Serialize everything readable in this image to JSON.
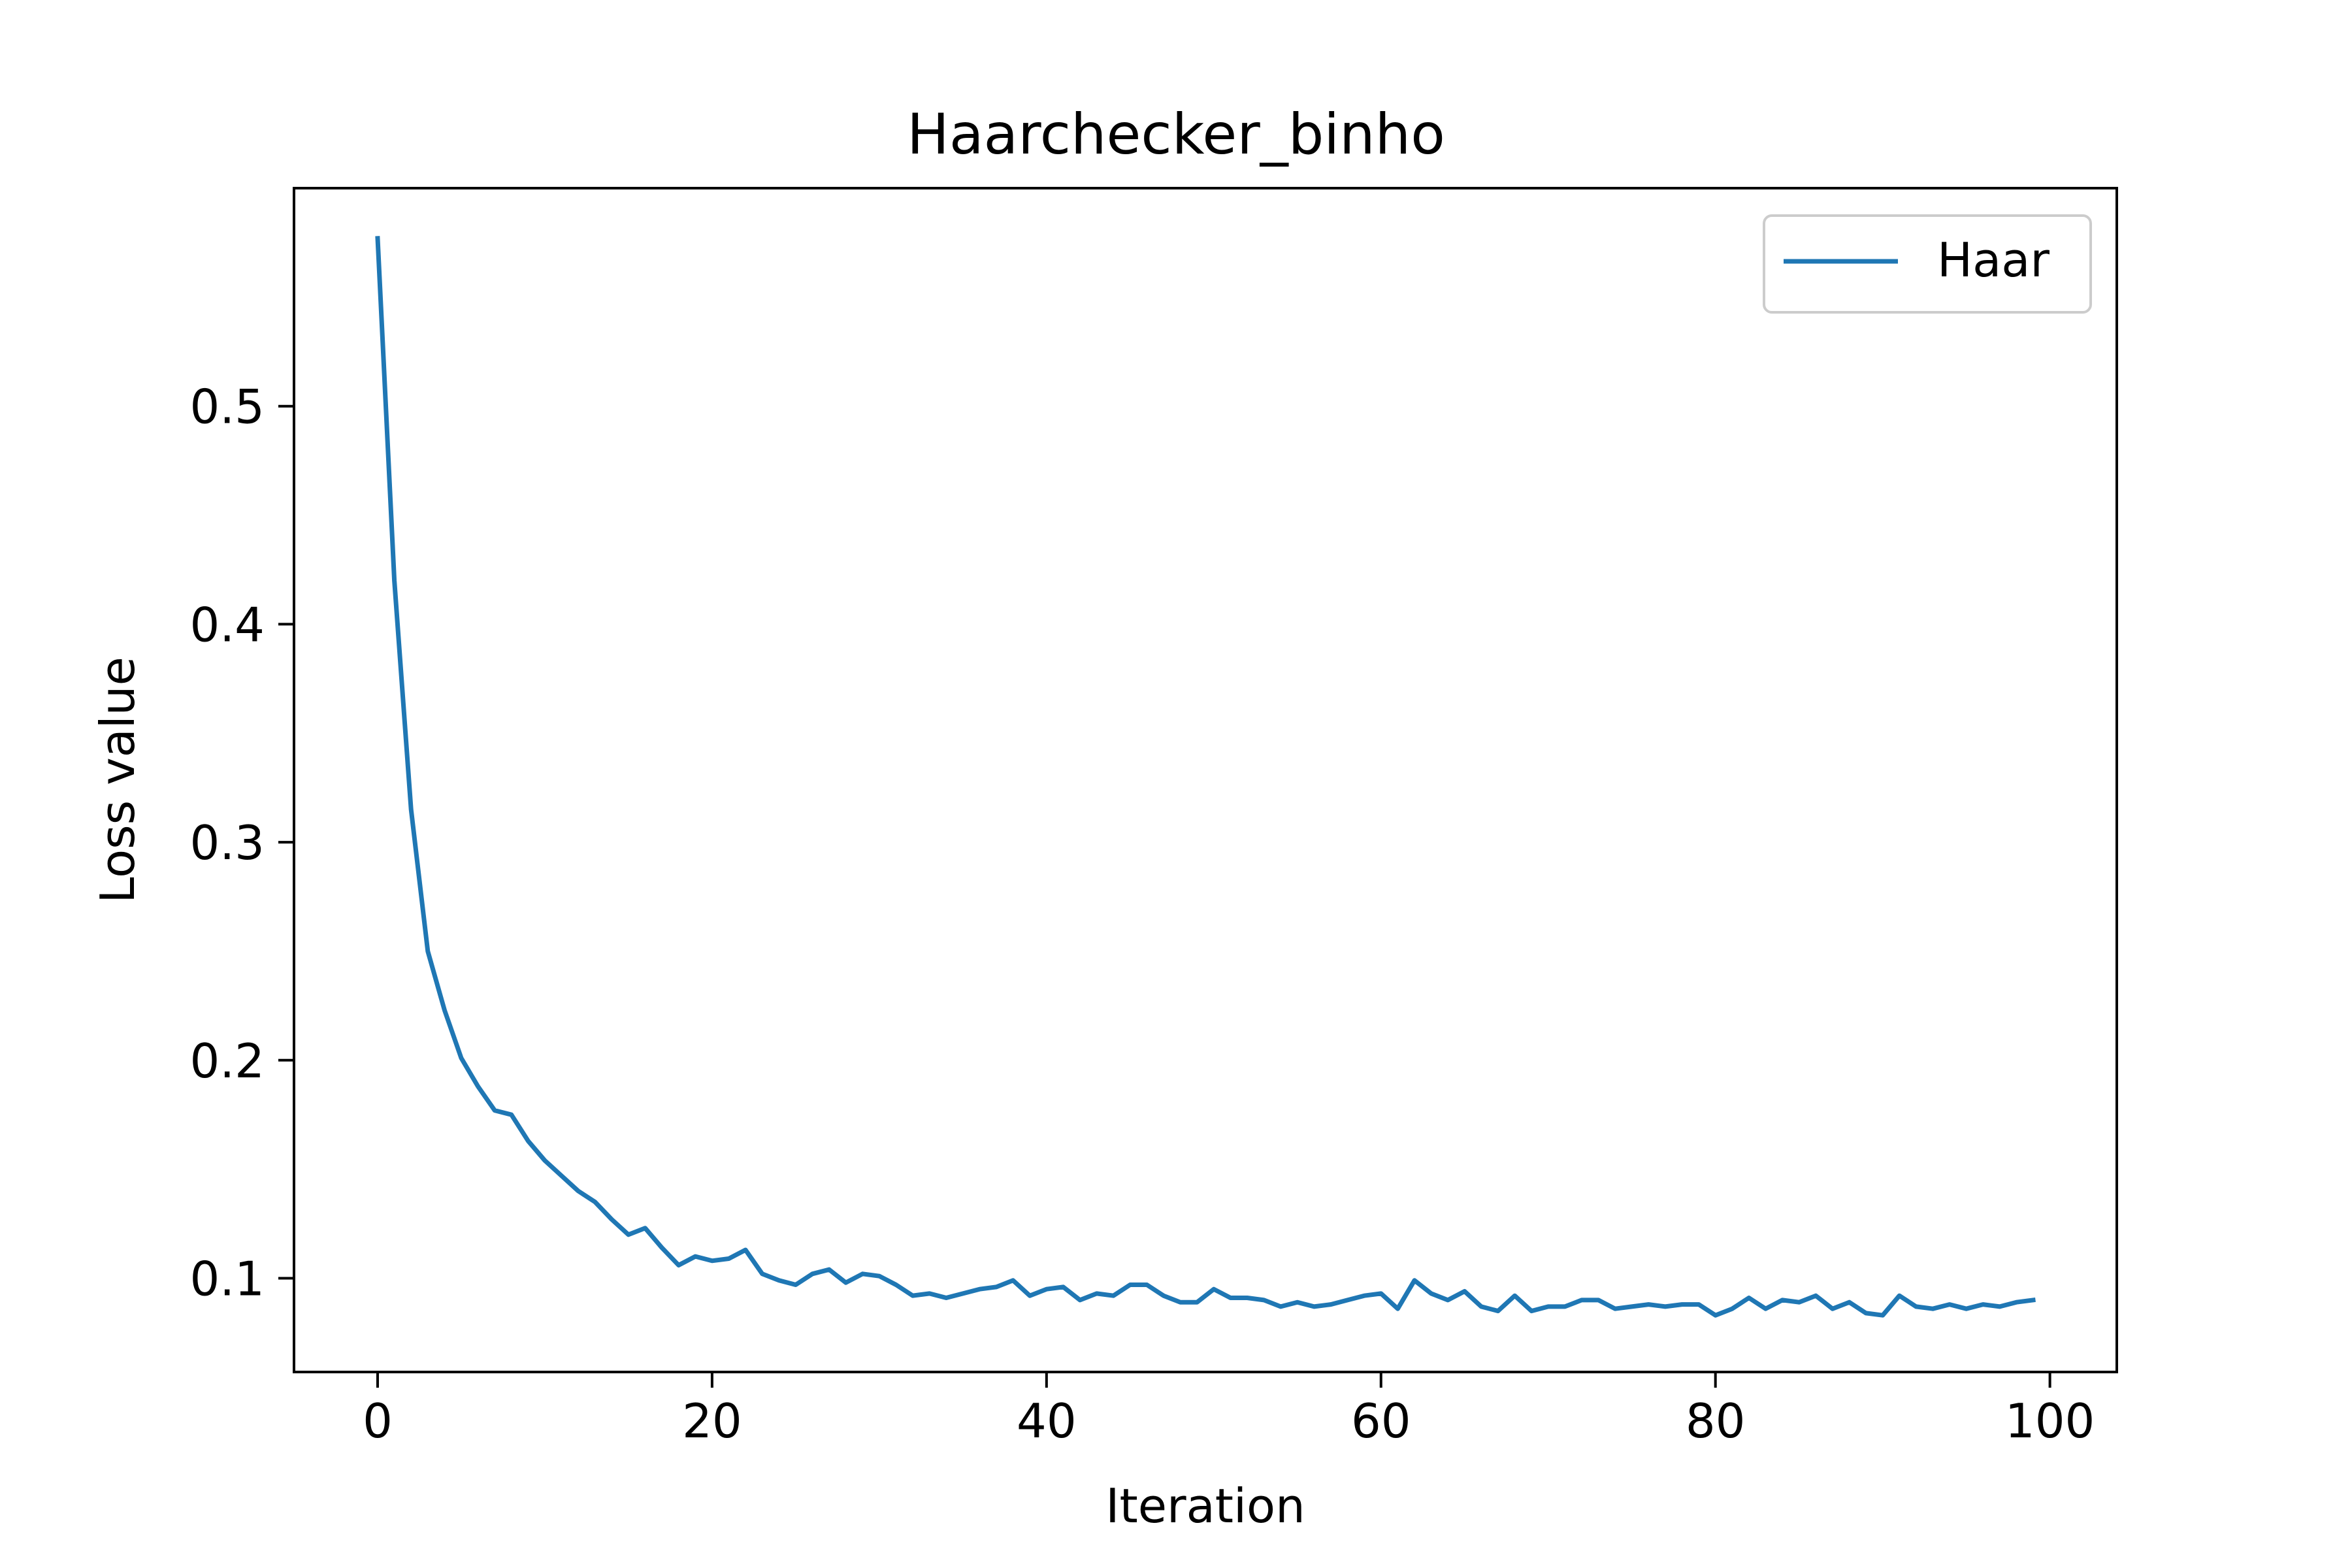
{
  "chart_data": {
    "type": "line",
    "title": "Haarchecker_binho",
    "xlabel": "Iteration",
    "ylabel": "Loss value",
    "xlim": [
      -5,
      104
    ],
    "ylim": [
      0.057,
      0.6
    ],
    "xticks": [
      0,
      20,
      40,
      60,
      80,
      100
    ],
    "xtick_labels": [
      "0",
      "20",
      "40",
      "60",
      "80",
      "100"
    ],
    "yticks": [
      0.1,
      0.2,
      0.3,
      0.4,
      0.5
    ],
    "ytick_labels": [
      "0.1",
      "0.2",
      "0.3",
      "0.4",
      "0.5"
    ],
    "grid": false,
    "legend": {
      "placement": "top-right"
    },
    "series": [
      {
        "name": "Haar",
        "color": "#1f77b4",
        "x": [
          0,
          1,
          2,
          3,
          4,
          5,
          6,
          7,
          8,
          9,
          10,
          11,
          12,
          13,
          14,
          15,
          16,
          17,
          18,
          19,
          20,
          21,
          22,
          23,
          24,
          25,
          26,
          27,
          28,
          29,
          30,
          31,
          32,
          33,
          34,
          35,
          36,
          37,
          38,
          39,
          40,
          41,
          42,
          43,
          44,
          45,
          46,
          47,
          48,
          49,
          50,
          51,
          52,
          53,
          54,
          55,
          56,
          57,
          58,
          59,
          60,
          61,
          62,
          63,
          64,
          65,
          66,
          67,
          68,
          69,
          70,
          71,
          72,
          73,
          74,
          75,
          76,
          77,
          78,
          79,
          80,
          81,
          82,
          83,
          84,
          85,
          86,
          87,
          88,
          89,
          90,
          91,
          92,
          93,
          94,
          95,
          96,
          97,
          98,
          99
        ],
        "values": [
          0.577,
          0.42,
          0.315,
          0.25,
          0.223,
          0.201,
          0.188,
          0.177,
          0.175,
          0.163,
          0.154,
          0.147,
          0.14,
          0.135,
          0.127,
          0.12,
          0.123,
          0.114,
          0.106,
          0.11,
          0.108,
          0.109,
          0.113,
          0.102,
          0.099,
          0.097,
          0.102,
          0.104,
          0.098,
          0.102,
          0.101,
          0.097,
          0.092,
          0.093,
          0.091,
          0.093,
          0.095,
          0.096,
          0.099,
          0.092,
          0.095,
          0.096,
          0.09,
          0.093,
          0.092,
          0.097,
          0.097,
          0.092,
          0.089,
          0.089,
          0.095,
          0.091,
          0.091,
          0.09,
          0.087,
          0.089,
          0.087,
          0.088,
          0.09,
          0.092,
          0.093,
          0.086,
          0.099,
          0.093,
          0.09,
          0.094,
          0.087,
          0.085,
          0.092,
          0.085,
          0.087,
          0.087,
          0.09,
          0.09,
          0.086,
          0.087,
          0.088,
          0.087,
          0.088,
          0.088,
          0.083,
          0.086,
          0.091,
          0.086,
          0.09,
          0.089,
          0.092,
          0.086,
          0.089,
          0.084,
          0.083,
          0.092,
          0.087,
          0.086,
          0.088,
          0.086,
          0.088,
          0.087,
          0.089,
          0.09
        ]
      }
    ]
  }
}
